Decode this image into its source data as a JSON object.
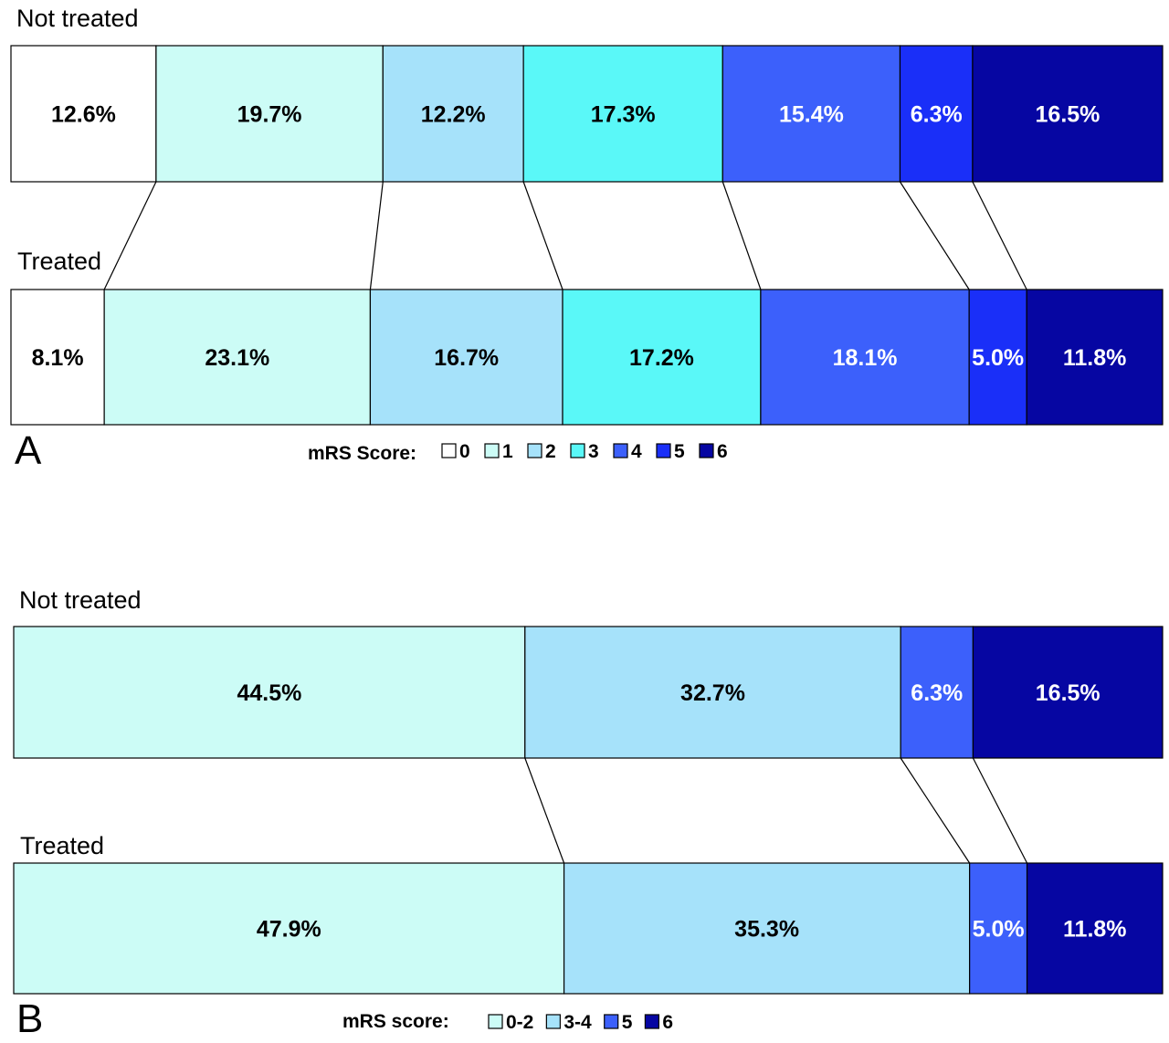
{
  "chart_data": [
    {
      "type": "bar",
      "panel": "A",
      "orientation": "horizontal-stacked-100",
      "categories": [
        "0",
        "1",
        "2",
        "3",
        "4",
        "5",
        "6"
      ],
      "colors": [
        "#ffffff",
        "#ccfcf6",
        "#a6e2fa",
        "#5af8f8",
        "#3c60fb",
        "#1a2ff8",
        "#0606a2"
      ],
      "text_colors": [
        "#000000",
        "#000000",
        "#000000",
        "#000000",
        "#ffffff",
        "#ffffff",
        "#ffffff"
      ],
      "rows": [
        {
          "label": "Not treated",
          "values": [
            12.6,
            19.7,
            12.2,
            17.3,
            15.4,
            6.3,
            16.5
          ],
          "value_labels": [
            "12.6%",
            "19.7%",
            "12.2%",
            "17.3%",
            "15.4%",
            "6.3%",
            "16.5%"
          ]
        },
        {
          "label": "Treated",
          "values": [
            8.1,
            23.1,
            16.7,
            17.2,
            18.1,
            5.0,
            11.8
          ],
          "value_labels": [
            "8.1%",
            "23.1%",
            "16.7%",
            "17.2%",
            "18.1%",
            "5.0%",
            "11.8%"
          ]
        }
      ],
      "legend": {
        "title": "mRS Score:",
        "items": [
          "0",
          "1",
          "2",
          "3",
          "4",
          "5",
          "6"
        ]
      }
    },
    {
      "type": "bar",
      "panel": "B",
      "orientation": "horizontal-stacked-100",
      "categories": [
        "0-2",
        "3-4",
        "5",
        "6"
      ],
      "colors": [
        "#ccfcf6",
        "#a6e2fa",
        "#3c60fb",
        "#0606a2"
      ],
      "text_colors": [
        "#000000",
        "#000000",
        "#ffffff",
        "#ffffff"
      ],
      "rows": [
        {
          "label": "Not treated",
          "values": [
            44.5,
            32.7,
            6.3,
            16.5
          ],
          "value_labels": [
            "44.5%",
            "32.7%",
            "6.3%",
            "16.5%"
          ]
        },
        {
          "label": "Treated",
          "values": [
            47.9,
            35.3,
            5.0,
            11.8
          ],
          "value_labels": [
            "47.9%",
            "35.3%",
            "5.0%",
            "11.8%"
          ]
        }
      ],
      "legend": {
        "title": "mRS score:",
        "items": [
          "0-2",
          "3-4",
          "5",
          "6"
        ]
      }
    }
  ]
}
